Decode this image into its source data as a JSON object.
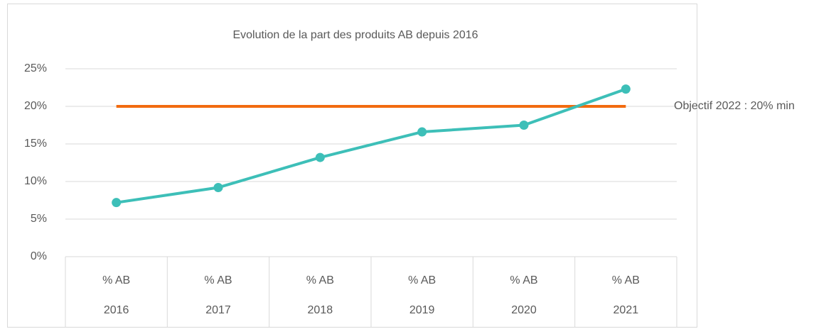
{
  "chart_data": {
    "type": "line",
    "title": "Evolution de la part des produits AB depuis 2016",
    "categories": [
      [
        "% AB",
        "2016"
      ],
      [
        "% AB",
        "2017"
      ],
      [
        "% AB",
        "2018"
      ],
      [
        "% AB",
        "2019"
      ],
      [
        "% AB",
        "2020"
      ],
      [
        "% AB",
        "2021"
      ]
    ],
    "series": [
      {
        "name": "% AB",
        "color": "#3dbfb8",
        "values": [
          7.2,
          9.2,
          13.2,
          16.6,
          17.5,
          22.3
        ]
      }
    ],
    "target": {
      "value": 20,
      "label": "Objectif 2022 :  20% min",
      "color": "#f26b0f"
    },
    "ylim": [
      0,
      25
    ],
    "yticks": [
      {
        "value": 0,
        "label": "0%"
      },
      {
        "value": 5,
        "label": "5%"
      },
      {
        "value": 10,
        "label": "10%"
      },
      {
        "value": 15,
        "label": "15%"
      },
      {
        "value": 20,
        "label": "20%"
      },
      {
        "value": 25,
        "label": "25%"
      }
    ],
    "grid": true
  }
}
